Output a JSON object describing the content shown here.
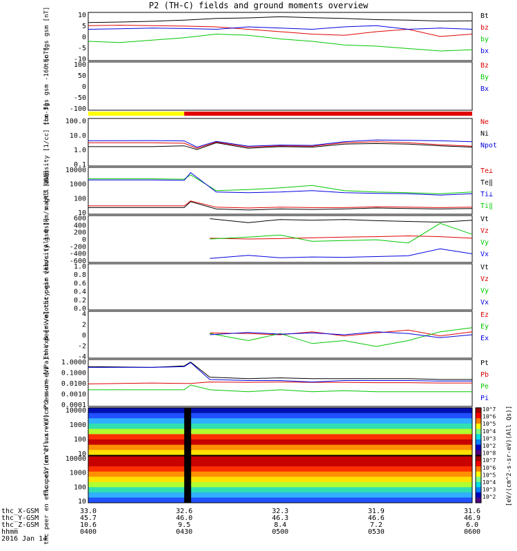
{
  "title": "P2 (TH-C) fields and ground moments overview",
  "date_label": "2016 Jan 14",
  "colors": {
    "black": "#000000",
    "red": "#e00000",
    "green": "#00c800",
    "blue": "#0000e0",
    "yellow": "#ffff00"
  },
  "chart_data": [
    {
      "type": "line",
      "ylabel": "thc fgs gsm [nT]",
      "yticks": [
        "10",
        "5",
        "0",
        "-5",
        "-10"
      ],
      "ylim": [
        -10,
        10
      ],
      "legend": [
        {
          "label": "Bt",
          "color": "black"
        },
        {
          "label": "bz",
          "color": "red"
        },
        {
          "label": "by",
          "color": "green"
        },
        {
          "label": "bx",
          "color": "blue"
        }
      ],
      "series": [
        {
          "name": "Bt",
          "color": "black",
          "x": [
            0,
            5,
            10,
            15,
            20,
            25,
            30,
            35,
            40,
            45,
            50,
            55,
            60
          ],
          "y": [
            5.8,
            6,
            6.3,
            6.8,
            7.5,
            7.7,
            8.2,
            7.8,
            7.5,
            7,
            6.8,
            6.4,
            6.5
          ]
        },
        {
          "name": "bz",
          "color": "red",
          "x": [
            0,
            5,
            10,
            15,
            20,
            25,
            30,
            35,
            40,
            45,
            50,
            55,
            60
          ],
          "y": [
            4.5,
            4.7,
            4.5,
            4.3,
            4,
            3,
            2,
            1,
            0.5,
            2,
            3,
            0,
            1
          ]
        },
        {
          "name": "by",
          "color": "green",
          "x": [
            0,
            5,
            10,
            15,
            20,
            25,
            30,
            35,
            40,
            45,
            50,
            55,
            60
          ],
          "y": [
            -2,
            -2.5,
            -1.5,
            -0.5,
            1,
            0.5,
            -1,
            -2,
            -3.5,
            -4,
            -5,
            -6,
            -5.5
          ]
        },
        {
          "name": "bx",
          "color": "blue",
          "x": [
            0,
            5,
            10,
            15,
            20,
            25,
            30,
            35,
            40,
            45,
            50,
            55,
            60
          ],
          "y": [
            3,
            3.2,
            3.5,
            3.3,
            3,
            4,
            3.5,
            3,
            4,
            4.5,
            3,
            3.5,
            3
          ]
        }
      ]
    },
    {
      "type": "line",
      "ylabel": "thc fgs gsm -160 [nT]",
      "yticks": [
        "100",
        "50",
        "0",
        "-50",
        "-100"
      ],
      "ylim": [
        -125,
        100
      ],
      "legend": [
        {
          "label": "Bz",
          "color": "red"
        },
        {
          "label": "By",
          "color": "green"
        },
        {
          "label": "Bx",
          "color": "blue"
        }
      ],
      "series": []
    },
    {
      "type": "bar",
      "ylabel": "",
      "segments": [
        {
          "from": 0,
          "to": 15,
          "color": "yellow"
        },
        {
          "from": 15,
          "to": 60,
          "color": "red"
        }
      ]
    },
    {
      "type": "line",
      "log": true,
      "ylabel": "Density [1/cc] [cm-3]",
      "yticks": [
        "100.0",
        "10.0",
        "1.0",
        "0.1"
      ],
      "ylim": [
        0.05,
        150
      ],
      "legend": [
        {
          "label": "Ne",
          "color": "red"
        },
        {
          "label": "Ni",
          "color": "black"
        },
        {
          "label": "Npot",
          "color": "blue"
        }
      ],
      "series": [
        {
          "name": "Ne",
          "color": "red",
          "x": [
            0,
            10,
            15,
            17,
            20,
            25,
            30,
            35,
            40,
            45,
            50,
            55,
            60
          ],
          "y": [
            2.5,
            2.5,
            2.3,
            1,
            2.8,
            1.2,
            1.5,
            1.4,
            2.5,
            3,
            2.5,
            1.8,
            1.4
          ]
        },
        {
          "name": "Ni",
          "color": "black",
          "x": [
            0,
            10,
            15,
            17,
            20,
            25,
            30,
            35,
            40,
            45,
            50,
            55,
            60
          ],
          "y": [
            1.3,
            1.3,
            1.5,
            0.8,
            2.5,
            1,
            1.3,
            1.2,
            2,
            2.2,
            2,
            1.5,
            1.2
          ]
        },
        {
          "name": "Npot",
          "color": "blue",
          "x": [
            0,
            10,
            15,
            17,
            20,
            25,
            30,
            35,
            40,
            45,
            50,
            55,
            60
          ],
          "y": [
            3.5,
            3.6,
            3.4,
            1.2,
            3.2,
            1.4,
            1.7,
            1.6,
            3,
            4,
            3.8,
            3.5,
            3
          ]
        }
      ]
    },
    {
      "type": "line",
      "log": true,
      "ylabel": "magt3 [eV]",
      "yticks": [
        "10000",
        "1000",
        "100",
        "10"
      ],
      "ylim": [
        5,
        12000
      ],
      "legend": [
        {
          "label": "Te⊥",
          "color": "red"
        },
        {
          "label": "Te‖",
          "color": "black"
        },
        {
          "label": "Ti⊥",
          "color": "blue"
        },
        {
          "label": "Ti‖",
          "color": "green"
        }
      ],
      "series": [
        {
          "name": "Ti‖",
          "color": "green",
          "x": [
            0,
            10,
            15,
            16,
            20,
            25,
            30,
            35,
            40,
            45,
            50,
            55,
            60
          ],
          "y": [
            1800,
            1800,
            1700,
            3500,
            250,
            300,
            400,
            600,
            250,
            200,
            180,
            150,
            200
          ]
        },
        {
          "name": "Ti⊥",
          "color": "blue",
          "x": [
            0,
            10,
            15,
            16,
            20,
            25,
            30,
            35,
            40,
            45,
            50,
            55,
            60
          ],
          "y": [
            1500,
            1500,
            1400,
            5000,
            200,
            180,
            200,
            250,
            180,
            160,
            150,
            120,
            150
          ]
        },
        {
          "name": "Te‖",
          "color": "black",
          "x": [
            0,
            10,
            15,
            16,
            20,
            25,
            30,
            35,
            40,
            45,
            50,
            55,
            60
          ],
          "y": [
            15,
            15,
            15,
            40,
            12,
            10,
            12,
            11,
            12,
            14,
            13,
            12,
            13
          ]
        },
        {
          "name": "Te⊥",
          "color": "red",
          "x": [
            0,
            10,
            15,
            16,
            20,
            25,
            30,
            35,
            40,
            45,
            50,
            55,
            60
          ],
          "y": [
            20,
            20,
            20,
            45,
            16,
            14,
            16,
            15,
            15,
            17,
            16,
            15,
            16
          ]
        }
      ]
    },
    {
      "type": "line",
      "ylabel": "thc peir velocity gsm [km/s (All Qs)]",
      "yticks": [
        "600",
        "400",
        "200",
        "0",
        "-200",
        "-400",
        "-600"
      ],
      "ylim": [
        -600,
        600
      ],
      "legend": [
        {
          "label": "Vt",
          "color": "black"
        },
        {
          "label": "Vz",
          "color": "red"
        },
        {
          "label": "Vy",
          "color": "green"
        },
        {
          "label": "Vx",
          "color": "blue"
        }
      ],
      "series": [
        {
          "name": "Vt",
          "color": "black",
          "x": [
            19,
            25,
            30,
            35,
            40,
            45,
            50,
            55,
            60
          ],
          "y": [
            520,
            420,
            500,
            480,
            500,
            470,
            450,
            430,
            480
          ]
        },
        {
          "name": "Vz",
          "color": "red",
          "x": [
            19,
            25,
            30,
            35,
            40,
            45,
            50,
            55,
            60
          ],
          "y": [
            20,
            0,
            10,
            30,
            50,
            60,
            80,
            60,
            20
          ]
        },
        {
          "name": "Vy",
          "color": "green",
          "x": [
            19,
            25,
            30,
            35,
            40,
            45,
            50,
            55,
            60
          ],
          "y": [
            0,
            50,
            100,
            -60,
            -40,
            -20,
            -100,
            400,
            120
          ]
        },
        {
          "name": "Vx",
          "color": "blue",
          "x": [
            19,
            25,
            30,
            35,
            40,
            45,
            50,
            55,
            60
          ],
          "y": [
            -500,
            -420,
            -480,
            -460,
            -470,
            -450,
            -430,
            -250,
            -380
          ]
        }
      ]
    },
    {
      "type": "line",
      "ylabel": "thc peer velocity gsm [km/s (All Qs)]",
      "yticks": [
        "1.0",
        "0.8",
        "0.6",
        "0.4",
        "0.2",
        "0.0"
      ],
      "ylim": [
        0,
        1
      ],
      "legend": [
        {
          "label": "Vt",
          "color": "black"
        },
        {
          "label": "Vz",
          "color": "red"
        },
        {
          "label": "Vy",
          "color": "green"
        },
        {
          "label": "Vx",
          "color": "blue"
        }
      ],
      "series": []
    },
    {
      "type": "line",
      "ylabel": "E=-VxB [mV/m]",
      "yticks": [
        "4",
        "2",
        "0",
        "-2",
        "-4"
      ],
      "ylim": [
        -4,
        4
      ],
      "legend": [
        {
          "label": "Ez",
          "color": "red"
        },
        {
          "label": "Ey",
          "color": "green"
        },
        {
          "label": "Ex",
          "color": "blue"
        }
      ],
      "series": [
        {
          "name": "Ez",
          "color": "red",
          "x": [
            19,
            25,
            30,
            35,
            40,
            45,
            50,
            55,
            60
          ],
          "y": [
            0.3,
            0.2,
            0,
            0.5,
            -0.2,
            0.3,
            0.8,
            -0.2,
            0.5
          ]
        },
        {
          "name": "Ey",
          "color": "green",
          "x": [
            19,
            25,
            30,
            35,
            40,
            45,
            50,
            55,
            60
          ],
          "y": [
            0.2,
            -1,
            0.2,
            -1.5,
            -1,
            -2,
            -1,
            0.5,
            1.2
          ]
        },
        {
          "name": "Ex",
          "color": "blue",
          "x": [
            19,
            25,
            30,
            35,
            40,
            45,
            50,
            55,
            60
          ],
          "y": [
            0,
            0.4,
            0.1,
            0.3,
            0,
            0.5,
            0.2,
            -0.5,
            0
          ]
        }
      ]
    },
    {
      "type": "line",
      "log": true,
      "ylabel": "Pressure [nPa]",
      "yticks": [
        "1.0000",
        "0.1000",
        "0.0100",
        "0.0010",
        "0.0001"
      ],
      "ylim": [
        0.0001,
        1.5
      ],
      "legend": [
        {
          "label": "Pt",
          "color": "black"
        },
        {
          "label": "Pb",
          "color": "red"
        },
        {
          "label": "Pe",
          "color": "green"
        },
        {
          "label": "Pi",
          "color": "blue"
        }
      ],
      "series": [
        {
          "name": "Pt",
          "color": "black",
          "x": [
            0,
            10,
            15,
            16,
            19,
            25,
            30,
            35,
            40,
            45,
            50,
            55,
            60
          ],
          "y": [
            0.35,
            0.3,
            0.4,
            0.9,
            0.04,
            0.03,
            0.035,
            0.03,
            0.03,
            0.03,
            0.03,
            0.025,
            0.025
          ]
        },
        {
          "name": "Pb",
          "color": "red",
          "x": [
            0,
            10,
            15,
            16,
            19,
            25,
            30,
            35,
            40,
            45,
            50,
            55,
            60
          ],
          "y": [
            0.01,
            0.012,
            0.011,
            0.011,
            0.015,
            0.014,
            0.015,
            0.014,
            0.014,
            0.013,
            0.013,
            0.012,
            0.012
          ]
        },
        {
          "name": "Pe",
          "color": "green",
          "x": [
            0,
            10,
            15,
            16,
            19,
            25,
            30,
            35,
            40,
            45,
            50,
            55,
            60
          ],
          "y": [
            0.003,
            0.003,
            0.003,
            0.008,
            0.003,
            0.002,
            0.003,
            0.002,
            0.0025,
            0.002,
            0.002,
            0.002,
            0.002
          ]
        },
        {
          "name": "Pi",
          "color": "blue",
          "x": [
            0,
            10,
            15,
            16,
            19,
            25,
            30,
            35,
            40,
            45,
            50,
            55,
            60
          ],
          "y": [
            0.3,
            0.3,
            0.35,
            0.8,
            0.025,
            0.02,
            0.02,
            0.015,
            0.02,
            0.02,
            0.02,
            0.018,
            0.018
          ]
        }
      ]
    },
    {
      "type": "heatmap",
      "ylabel": "thc peir en eflux eV/(cm^2-s-sr-eV)",
      "yticks": [
        "10000",
        "1000",
        "100",
        "10"
      ]
    },
    {
      "type": "heatmap",
      "ylabel": "thc peer en eflux eV/(cm^2-s-sr-eV)",
      "yticks": [
        "10000",
        "1000",
        "100",
        "10"
      ]
    }
  ],
  "colorbar": {
    "label": "[eV/(cm^2-s-sr-eV)(All Qs)]",
    "ticks": [
      "10^7",
      "10^6",
      "10^5",
      "10^4",
      "10^3",
      "10^2",
      "10^8",
      "10^7",
      "10^6",
      "10^5",
      "10^4",
      "10^3",
      "10^2"
    ]
  },
  "x_axis": {
    "rows": [
      {
        "label": "thc_X-GSM",
        "values": [
          "33.0",
          "32.6",
          "32.3",
          "31.9",
          "31.6"
        ]
      },
      {
        "label": "thc_Y-GSM",
        "values": [
          "45.7",
          "46.0",
          "46.3",
          "46.6",
          "46.9"
        ]
      },
      {
        "label": "thc_Z-GSM",
        "values": [
          "10.6",
          "9.5",
          "8.4",
          "7.2",
          "6.0"
        ]
      },
      {
        "label": "hhmm",
        "values": [
          "0400",
          "0430",
          "0500",
          "0530",
          "0600"
        ]
      }
    ]
  }
}
